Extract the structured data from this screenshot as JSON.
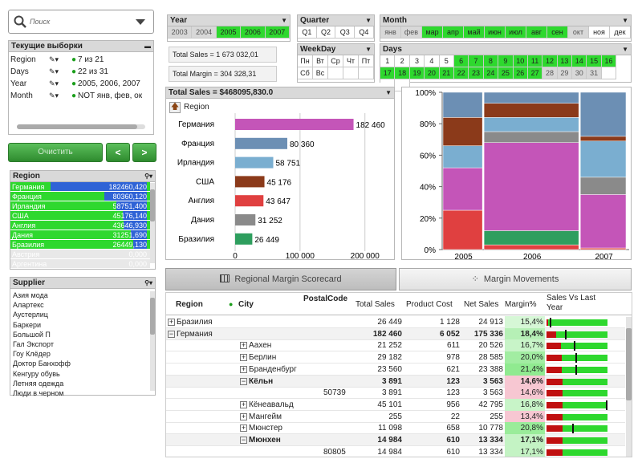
{
  "search": {
    "placeholder": "Поиск"
  },
  "current_selections": {
    "title": "Текущие выборки",
    "rows": [
      {
        "field": "Region",
        "value": "7 из 21"
      },
      {
        "field": "Days",
        "value": "22 из 31"
      },
      {
        "field": "Year",
        "value": "2005, 2006, 2007"
      },
      {
        "field": "Month",
        "value": "NOT янв, фев, ок"
      }
    ]
  },
  "buttons": {
    "clear": "Очистить",
    "back": "<",
    "forward": ">"
  },
  "region_list": {
    "title": "Region",
    "items": [
      {
        "name": "Германия",
        "value": "182460,420",
        "frac": 1.0
      },
      {
        "name": "Франция",
        "value": "80360,120",
        "frac": 0.44
      },
      {
        "name": "Ирландия",
        "value": "58751,400",
        "frac": 0.32
      },
      {
        "name": "США",
        "value": "45176,140",
        "frac": 0.25
      },
      {
        "name": "Англия",
        "value": "43646,930",
        "frac": 0.24
      },
      {
        "name": "Дания",
        "value": "31251,690",
        "frac": 0.17
      },
      {
        "name": "Бразилия",
        "value": "26449,130",
        "frac": 0.145
      },
      {
        "name": "Австрия",
        "value": "0,000",
        "frac": 0
      },
      {
        "name": "Аргентина",
        "value": "0,000",
        "frac": 0
      }
    ]
  },
  "supplier_list": {
    "title": "Supplier",
    "items": [
      "Азия мода",
      "Алартекс",
      "Аустерлиц",
      "Баркери",
      "Большой П",
      "Гал Экспорт",
      "Гоу Клёдер",
      "Доктор Банхофф",
      "Кенгуру обувь",
      "Летняя одежда",
      "Люди в черном"
    ]
  },
  "year": {
    "title": "Year",
    "items": [
      {
        "label": "2003",
        "state": "alt"
      },
      {
        "label": "2004",
        "state": "alt"
      },
      {
        "label": "2005",
        "state": "sel"
      },
      {
        "label": "2006",
        "state": "sel"
      },
      {
        "label": "2007",
        "state": "sel"
      }
    ]
  },
  "quarter": {
    "title": "Quarter",
    "items": [
      {
        "label": "Q1",
        "state": "wh"
      },
      {
        "label": "Q2",
        "state": "wh"
      },
      {
        "label": "Q3",
        "state": "wh"
      },
      {
        "label": "Q4",
        "state": "wh"
      }
    ]
  },
  "weekday": {
    "title": "WeekDay",
    "items": [
      {
        "label": "Пн",
        "state": "wh"
      },
      {
        "label": "Вт",
        "state": "wh"
      },
      {
        "label": "Ср",
        "state": "wh"
      },
      {
        "label": "Чт",
        "state": "wh"
      },
      {
        "label": "Пт",
        "state": "wh"
      },
      {
        "label": "Сб",
        "state": "wh"
      },
      {
        "label": "Вс",
        "state": "wh"
      },
      {
        "label": "",
        "state": "wh"
      },
      {
        "label": "",
        "state": "wh"
      },
      {
        "label": "",
        "state": "wh"
      }
    ]
  },
  "month": {
    "title": "Month",
    "items": [
      {
        "label": "янв",
        "state": "alt"
      },
      {
        "label": "фев",
        "state": "alt"
      },
      {
        "label": "мар",
        "state": "sel"
      },
      {
        "label": "апр",
        "state": "sel"
      },
      {
        "label": "май",
        "state": "sel"
      },
      {
        "label": "июн",
        "state": "sel"
      },
      {
        "label": "июл",
        "state": "sel"
      },
      {
        "label": "авг",
        "state": "sel"
      },
      {
        "label": "сен",
        "state": "sel"
      },
      {
        "label": "окт",
        "state": "alt"
      },
      {
        "label": "ноя",
        "state": "wh"
      },
      {
        "label": "дек",
        "state": "wh"
      }
    ]
  },
  "days": {
    "title": "Days",
    "items": [
      {
        "label": "1",
        "state": "wh"
      },
      {
        "label": "2",
        "state": "wh"
      },
      {
        "label": "3",
        "state": "wh"
      },
      {
        "label": "4",
        "state": "wh"
      },
      {
        "label": "5",
        "state": "wh"
      },
      {
        "label": "6",
        "state": "sel"
      },
      {
        "label": "7",
        "state": "sel"
      },
      {
        "label": "8",
        "state": "sel"
      },
      {
        "label": "9",
        "state": "sel"
      },
      {
        "label": "10",
        "state": "sel"
      },
      {
        "label": "11",
        "state": "sel"
      },
      {
        "label": "12",
        "state": "sel"
      },
      {
        "label": "13",
        "state": "sel"
      },
      {
        "label": "14",
        "state": "sel"
      },
      {
        "label": "15",
        "state": "sel"
      },
      {
        "label": "16",
        "state": "sel"
      },
      {
        "label": "17",
        "state": "sel"
      },
      {
        "label": "18",
        "state": "sel"
      },
      {
        "label": "19",
        "state": "sel"
      },
      {
        "label": "20",
        "state": "sel"
      },
      {
        "label": "21",
        "state": "sel"
      },
      {
        "label": "22",
        "state": "sel"
      },
      {
        "label": "23",
        "state": "sel"
      },
      {
        "label": "24",
        "state": "sel"
      },
      {
        "label": "25",
        "state": "sel"
      },
      {
        "label": "26",
        "state": "sel"
      },
      {
        "label": "27",
        "state": "sel"
      },
      {
        "label": "28",
        "state": "alt"
      },
      {
        "label": "29",
        "state": "alt"
      },
      {
        "label": "30",
        "state": "alt"
      },
      {
        "label": "31",
        "state": "alt"
      },
      {
        "label": "",
        "state": "wh"
      },
      {
        "label": "",
        "state": "wh"
      },
      {
        "label": "",
        "state": "wh"
      }
    ]
  },
  "kpi": {
    "total_sales": "Total Sales = 1 673 032,01",
    "total_margin": "Total Margin = 304 328,31"
  },
  "bar_chart_title": "Total Sales = $468095,830.0",
  "bar_chart_drill_label": "Region",
  "chart_data": [
    {
      "type": "bar",
      "orientation": "horizontal",
      "categories": [
        "Германия",
        "Франция",
        "Ирландия",
        "США",
        "Англия",
        "Дания",
        "Бразилия"
      ],
      "values": [
        182460,
        80360,
        58751,
        45176,
        43647,
        31252,
        26449
      ],
      "value_labels": [
        "182 460",
        "80 360",
        "58 751",
        "45 176",
        "43 647",
        "31 252",
        "26 449"
      ],
      "colors": [
        "#c455b8",
        "#6c8fb4",
        "#7aaed0",
        "#8b3a1a",
        "#e04040",
        "#8a8a8a",
        "#2e9e5e"
      ],
      "title": "Total Sales = $468095,830.0",
      "xlim": [
        0,
        230000
      ],
      "xticks": [
        0,
        100000,
        200000
      ],
      "xtick_labels": [
        "0",
        "100 000",
        "200 000"
      ],
      "grid": true
    },
    {
      "type": "bar",
      "stacked": "percent",
      "categories": [
        "2005",
        "2006",
        "2007"
      ],
      "widths": [
        0.2,
        0.47,
        0.23
      ],
      "series": [
        {
          "color": "#e04040",
          "values": [
            25,
            3,
            1
          ]
        },
        {
          "color": "#2e9e5e",
          "values": [
            0,
            9,
            0
          ]
        },
        {
          "color": "#c455b8",
          "values": [
            27,
            56,
            34
          ]
        },
        {
          "color": "#8a8a8a",
          "values": [
            0,
            7,
            11
          ]
        },
        {
          "color": "#7aaed0",
          "values": [
            14,
            9,
            23
          ]
        },
        {
          "color": "#8b3a1a",
          "values": [
            18,
            9,
            3
          ]
        },
        {
          "color": "#6c8fb4",
          "values": [
            16,
            7,
            28
          ]
        }
      ],
      "ylim": [
        0,
        100
      ],
      "yticks": [
        "0%",
        "20%",
        "40%",
        "60%",
        "80%",
        "100%"
      ]
    }
  ],
  "tabs": [
    {
      "label": "Regional Margin Scorecard",
      "active": true
    },
    {
      "label": "Margin Movements",
      "active": false
    }
  ],
  "table": {
    "headers": {
      "region": "Region",
      "city": "City",
      "postal": "PostalCode",
      "total_sales": "Total Sales",
      "product_cost": "Product Cost",
      "net_sales": "Net Sales",
      "margin": "Margin%",
      "svly": "Sales Vs Last Year"
    },
    "rows": [
      {
        "region": "Бразилия",
        "region_toggle": "+",
        "city": "",
        "city_toggle": "",
        "postal": "",
        "ts": "26 449",
        "pc": "1 128",
        "ns": "24 913",
        "m": "15,4%",
        "mcolor": "#d6f7d6",
        "bold": false,
        "bar": 0.05,
        "mark": 0.05
      },
      {
        "region": "Германия",
        "region_toggle": "−",
        "city": "",
        "city_toggle": "",
        "postal": "",
        "ts": "182 460",
        "pc": "6 052",
        "ns": "175 336",
        "m": "18,4%",
        "mcolor": "#b6f0b6",
        "bold": true,
        "bar": 0.3,
        "mark": 0.3
      },
      {
        "region": "",
        "region_toggle": "",
        "city": "Аахен",
        "city_toggle": "+",
        "postal": "",
        "ts": "21 252",
        "pc": "611",
        "ns": "20 526",
        "m": "16,7%",
        "mcolor": "#c8f4c8",
        "bold": false,
        "bar": 0.45,
        "mark": 0.45
      },
      {
        "region": "",
        "region_toggle": "",
        "city": "Берлин",
        "city_toggle": "+",
        "postal": "",
        "ts": "29 182",
        "pc": "978",
        "ns": "28 585",
        "m": "20,0%",
        "mcolor": "#a2eda2",
        "bold": false,
        "bar": 0.48,
        "mark": 0.48
      },
      {
        "region": "",
        "region_toggle": "",
        "city": "Бранденбург",
        "city_toggle": "+",
        "postal": "",
        "ts": "23 560",
        "pc": "621",
        "ns": "23 388",
        "m": "21,4%",
        "mcolor": "#90ea90",
        "bold": false,
        "bar": 0.48,
        "mark": 0.48
      },
      {
        "region": "",
        "region_toggle": "",
        "city": "Кёльн",
        "city_toggle": "−",
        "postal": "",
        "ts": "3 891",
        "pc": "123",
        "ns": "3 563",
        "m": "14,6%",
        "mcolor": "#f7c7d2",
        "bold": true,
        "bar": 0.5,
        "mark": -1
      },
      {
        "region": "",
        "region_toggle": "",
        "city": "",
        "city_toggle": "",
        "postal": "50739",
        "ts": "3 891",
        "pc": "123",
        "ns": "3 563",
        "m": "14,6%",
        "mcolor": "#f7c7d2",
        "bold": false,
        "bar": 0.5,
        "mark": -1
      },
      {
        "region": "",
        "region_toggle": "",
        "city": "Кёнеавальд",
        "city_toggle": "+",
        "postal": "",
        "ts": "45 101",
        "pc": "956",
        "ns": "42 795",
        "m": "16,8%",
        "mcolor": "#c8f4c8",
        "bold": false,
        "bar": 0.5,
        "mark": 0.98
      },
      {
        "region": "",
        "region_toggle": "",
        "city": "Мангейм",
        "city_toggle": "+",
        "postal": "",
        "ts": "255",
        "pc": "22",
        "ns": "255",
        "m": "13,4%",
        "mcolor": "#f7c7d2",
        "bold": false,
        "bar": 0.5,
        "mark": -1
      },
      {
        "region": "",
        "region_toggle": "",
        "city": "Мюнстер",
        "city_toggle": "+",
        "postal": "",
        "ts": "11 098",
        "pc": "658",
        "ns": "10 778",
        "m": "20,8%",
        "mcolor": "#9aec9a",
        "bold": false,
        "bar": 0.5,
        "mark": 0.42
      },
      {
        "region": "",
        "region_toggle": "",
        "city": "Мюнхен",
        "city_toggle": "−",
        "postal": "",
        "ts": "14 984",
        "pc": "610",
        "ns": "13 334",
        "m": "17,1%",
        "mcolor": "#c4f3c4",
        "bold": true,
        "bar": 0.5,
        "mark": -1
      },
      {
        "region": "",
        "region_toggle": "",
        "city": "",
        "city_toggle": "",
        "postal": "80805",
        "ts": "14 984",
        "pc": "610",
        "ns": "13 334",
        "m": "17,1%",
        "mcolor": "#c4f3c4",
        "bold": false,
        "bar": 0.5,
        "mark": -1
      }
    ]
  }
}
